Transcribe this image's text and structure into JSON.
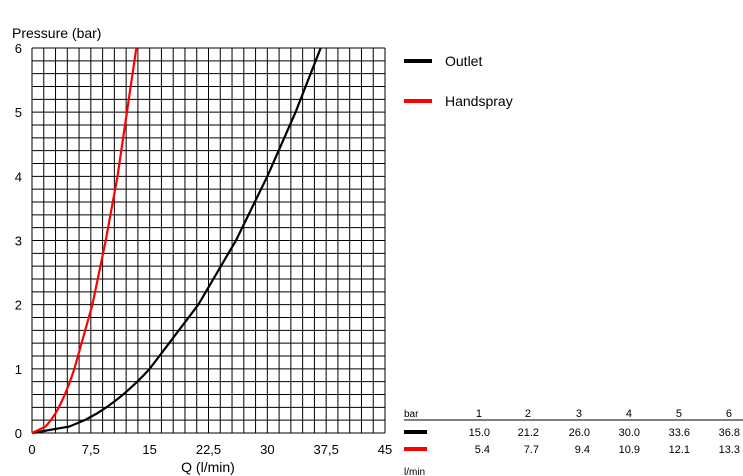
{
  "chart_data": {
    "type": "line",
    "ylabel": "Pressure (bar)",
    "xlabel": "Q (l/min)",
    "xlim": [
      0,
      45
    ],
    "ylim": [
      0,
      6
    ],
    "xticks": [
      "0",
      "7,5",
      "15",
      "22,5",
      "30",
      "37,5",
      "45"
    ],
    "yticks": [
      "0",
      "1",
      "2",
      "3",
      "4",
      "5",
      "6"
    ],
    "grid": true,
    "legend_position": "top-right",
    "series": [
      {
        "name": "Outlet",
        "color": "#000000",
        "points": [
          [
            0,
            0
          ],
          [
            15.0,
            1
          ],
          [
            21.2,
            2
          ],
          [
            26.0,
            3
          ],
          [
            30.0,
            4
          ],
          [
            33.6,
            5
          ],
          [
            36.8,
            6
          ]
        ]
      },
      {
        "name": "Handspray",
        "color": "#ff0000",
        "points": [
          [
            0,
            0
          ],
          [
            5.4,
            1
          ],
          [
            7.7,
            2
          ],
          [
            9.4,
            3
          ],
          [
            10.9,
            4
          ],
          [
            12.1,
            5
          ],
          [
            13.3,
            6
          ]
        ]
      }
    ],
    "table": {
      "header_unit": "bar",
      "footer_unit": "l/min",
      "pressures": [
        "1",
        "2",
        "3",
        "4",
        "5",
        "6"
      ],
      "rows": [
        {
          "color": "#000000",
          "values": [
            "15.0",
            "21.2",
            "26.0",
            "30.0",
            "33.6",
            "36.8"
          ]
        },
        {
          "color": "#ff0000",
          "values": [
            "5.4",
            "7.7",
            "9.4",
            "10.9",
            "12.1",
            "13.3"
          ]
        }
      ]
    }
  }
}
